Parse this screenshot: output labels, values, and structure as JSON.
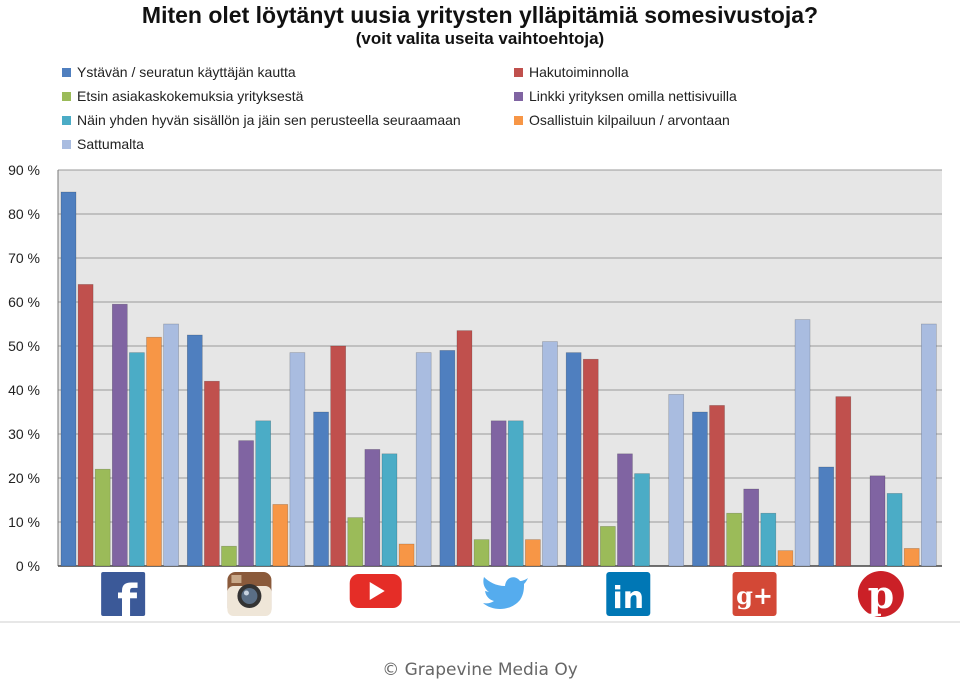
{
  "chart_data": {
    "type": "bar",
    "title": "Miten olet löytänyt uusia yritysten ylläpitämiä somesivustoja?",
    "subtitle": "(voit valita useita vaihtoehtoja)",
    "categories": [
      "facebook-icon",
      "instagram-icon",
      "youtube-icon",
      "twitter-icon",
      "linkedin-icon",
      "googleplus-icon",
      "pinterest-icon"
    ],
    "ylim": [
      0,
      90
    ],
    "yticks": [
      "0 %",
      "10 %",
      "20 %",
      "30 %",
      "40 %",
      "50 %",
      "60 %",
      "70 %",
      "80 %",
      "90 %"
    ],
    "grid": true,
    "legend_position": "top",
    "series": [
      {
        "name": "Ystävän / seuratun käyttäjän kautta",
        "color": "#4F7FBF",
        "values": [
          85,
          52.5,
          35,
          49,
          48.5,
          35,
          22.5
        ]
      },
      {
        "name": "Hakutoiminnolla",
        "color": "#C0504D",
        "values": [
          64,
          42,
          50,
          53.5,
          47,
          36.5,
          38.5
        ]
      },
      {
        "name": "Etsin asiakaskokemuksia yrityksestä",
        "color": "#9BBB59",
        "values": [
          22,
          4.5,
          11,
          6,
          9,
          12,
          0
        ]
      },
      {
        "name": "Linkki yrityksen omilla nettisivuilla",
        "color": "#8064A2",
        "values": [
          59.5,
          28.5,
          26.5,
          33,
          25.5,
          17.5,
          20.5
        ]
      },
      {
        "name": "Näin yhden hyvän sisällön ja jäin sen perusteella seuraamaan",
        "color": "#4BACC6",
        "values": [
          48.5,
          33,
          25.5,
          33,
          21,
          12,
          16.5
        ]
      },
      {
        "name": "Osallistuin kilpailuun / arvontaan",
        "color": "#F79646",
        "values": [
          52,
          14,
          5,
          6,
          0,
          3.5,
          4
        ]
      },
      {
        "name": "Sattumalta",
        "color": "#A9BCE0",
        "values": [
          55,
          48.5,
          48.5,
          51,
          39,
          56,
          55
        ]
      }
    ]
  },
  "footer": "© Grapevine Media Oy"
}
